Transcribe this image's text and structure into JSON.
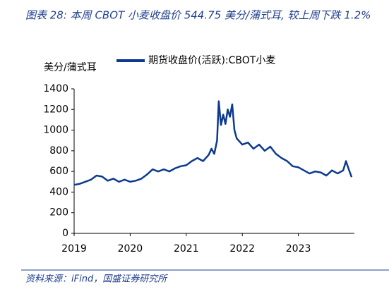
{
  "chart_data": {
    "type": "line",
    "title": "图表 28: 本周 CBOT 小麦收盘价 544.75 美分/蒲式耳, 较上周下跌 1.2%",
    "y_label": "美分/蒲式耳",
    "source": "资料来源：iFind，国盛证券研究所",
    "x": [
      2019.0,
      2019.1,
      2019.2,
      2019.3,
      2019.4,
      2019.5,
      2019.6,
      2019.7,
      2019.8,
      2019.9,
      2020.0,
      2020.1,
      2020.2,
      2020.3,
      2020.4,
      2020.5,
      2020.6,
      2020.7,
      2020.8,
      2020.9,
      2021.0,
      2021.1,
      2021.2,
      2021.3,
      2021.4,
      2021.45,
      2021.5,
      2021.55,
      2021.58,
      2021.62,
      2021.66,
      2021.7,
      2021.74,
      2021.78,
      2021.82,
      2021.86,
      2021.9,
      2022.0,
      2022.1,
      2022.2,
      2022.3,
      2022.4,
      2022.5,
      2022.6,
      2022.7,
      2022.8,
      2022.9,
      2023.0,
      2023.1,
      2023.2,
      2023.3,
      2023.4,
      2023.5,
      2023.6,
      2023.7,
      2023.8,
      2023.85,
      2023.9,
      2023.95
    ],
    "series": [
      {
        "name": "期货收盘价(活跃):CBOT小麦",
        "color": "#0d3a8e",
        "values": [
          470,
          480,
          500,
          520,
          560,
          550,
          510,
          530,
          500,
          520,
          500,
          510,
          530,
          570,
          620,
          600,
          620,
          600,
          630,
          650,
          660,
          700,
          730,
          700,
          760,
          820,
          770,
          900,
          1280,
          1050,
          1150,
          1060,
          1200,
          1130,
          1250,
          1000,
          920,
          860,
          880,
          820,
          860,
          800,
          840,
          770,
          730,
          700,
          650,
          640,
          610,
          580,
          600,
          590,
          560,
          610,
          580,
          610,
          700,
          620,
          545
        ]
      }
    ],
    "xlim": [
      2019,
      2024
    ],
    "xticks": [
      2019,
      2020,
      2021,
      2022,
      2023
    ],
    "ylim": [
      0,
      1400
    ],
    "yticks": [
      0,
      200,
      400,
      600,
      800,
      1000,
      1200,
      1400
    ],
    "legend": "top"
  }
}
